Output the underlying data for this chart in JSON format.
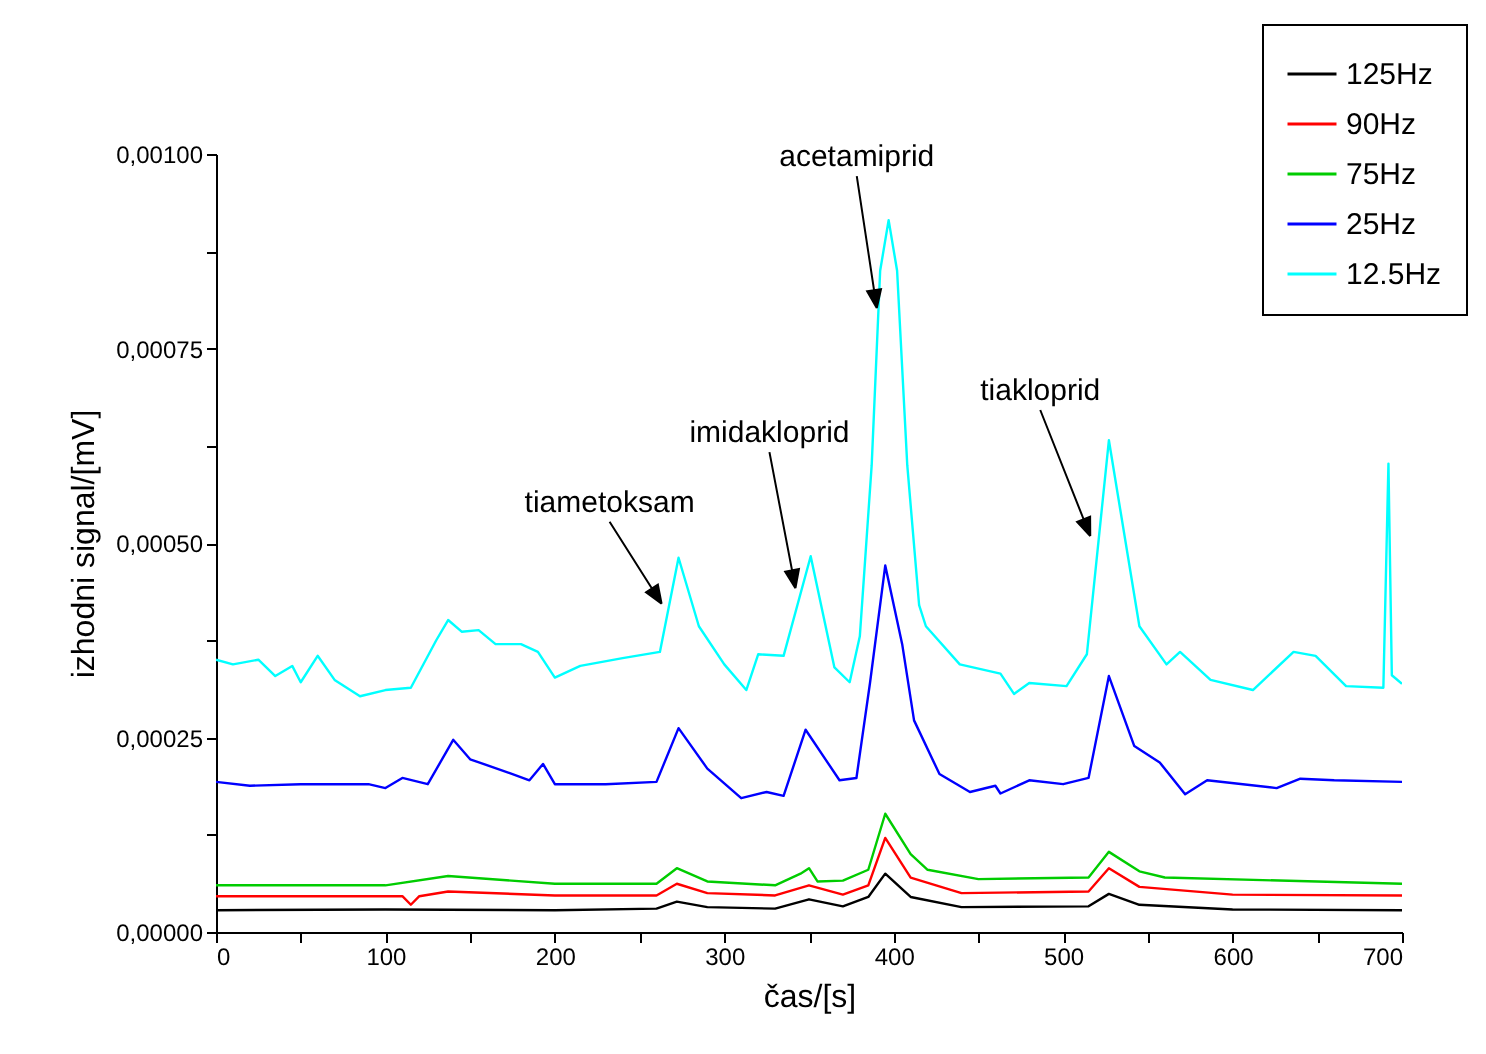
{
  "chart_data": {
    "type": "line",
    "xlabel": "čas/[s]",
    "ylabel": "izhodni signal/[mV]",
    "xlim": [
      0,
      700
    ],
    "ylim": [
      0,
      0.001
    ],
    "xticks": [
      0,
      {
        "value": 50,
        "label": null
      },
      100,
      {
        "value": 150,
        "label": null
      },
      200,
      {
        "value": 250,
        "label": null
      },
      300,
      {
        "value": 350,
        "label": null
      },
      400,
      {
        "value": 450,
        "label": null
      },
      500,
      {
        "value": 550,
        "label": null
      },
      600,
      {
        "value": 650,
        "label": null
      },
      700
    ],
    "yticks": [
      {
        "value": 0,
        "label": "0,00000"
      },
      {
        "value": 0.000125,
        "label": null
      },
      {
        "value": 0.00025,
        "label": "0,00025"
      },
      {
        "value": 0.000375,
        "label": null
      },
      {
        "value": 0.0005,
        "label": "0,00050"
      },
      {
        "value": 0.000625,
        "label": null
      },
      {
        "value": 0.00075,
        "label": "0,00075"
      },
      {
        "value": 0.000875,
        "label": null
      },
      {
        "value": 0.001,
        "label": "0,00100"
      }
    ],
    "grid": false,
    "legend": "top right",
    "line_style": "solid",
    "marker": "none",
    "annotations": [
      {
        "text": "tiametoksam",
        "x": 263,
        "y": 0.000422
      },
      {
        "text": "imidakloprid",
        "x": 342,
        "y": 0.000442
      },
      {
        "text": "acetamiprid",
        "x": 390,
        "y": 0.000802
      },
      {
        "text": "tiakloprid",
        "x": 516,
        "y": 0.000509
      }
    ],
    "series": [
      {
        "name": "125Hz",
        "color": "#000000",
        "x": [
          0,
          100,
          200,
          260,
          272,
          290,
          330,
          350,
          370,
          385,
          395,
          410,
          440,
          515,
          527,
          545,
          600,
          700
        ],
        "values": [
          2.8e-05,
          2.9e-05,
          2.8e-05,
          3e-05,
          3.9e-05,
          3.2e-05,
          3e-05,
          4.2e-05,
          3.3e-05,
          4.5e-05,
          7.5e-05,
          4.5e-05,
          3.2e-05,
          3.3e-05,
          4.9e-05,
          3.5e-05,
          2.9e-05,
          2.8e-05
        ]
      },
      {
        "name": "90Hz",
        "color": "#ff0000",
        "x": [
          0,
          100,
          110,
          115,
          120,
          137,
          200,
          260,
          272,
          290,
          330,
          350,
          370,
          385,
          395,
          410,
          440,
          515,
          527,
          545,
          600,
          700
        ],
        "values": [
          4.6e-05,
          4.6e-05,
          4.6e-05,
          3.5e-05,
          4.6e-05,
          5.2e-05,
          4.7e-05,
          4.7e-05,
          6.2e-05,
          5e-05,
          4.7e-05,
          6e-05,
          4.8e-05,
          6e-05,
          0.000121,
          7e-05,
          5e-05,
          5.2e-05,
          8.2e-05,
          5.8e-05,
          4.8e-05,
          4.7e-05
        ]
      },
      {
        "name": "75Hz",
        "color": "#00cc00",
        "x": [
          0,
          100,
          137,
          200,
          260,
          272,
          290,
          330,
          345,
          350,
          355,
          370,
          385,
          395,
          410,
          420,
          450,
          515,
          527,
          545,
          560,
          700
        ],
        "values": [
          6e-05,
          6e-05,
          7.2e-05,
          6.2e-05,
          6.2e-05,
          8.2e-05,
          6.5e-05,
          6e-05,
          7.5e-05,
          8.2e-05,
          6.5e-05,
          6.6e-05,
          8e-05,
          0.000152,
          0.0001,
          8e-05,
          6.8e-05,
          7e-05,
          0.000103,
          7.8e-05,
          7e-05,
          6.2e-05
        ]
      },
      {
        "name": "25Hz",
        "color": "#0000ff",
        "x": [
          0,
          20,
          50,
          90,
          100,
          110,
          125,
          140,
          150,
          175,
          185,
          193,
          200,
          230,
          260,
          273,
          290,
          310,
          325,
          335,
          348,
          368,
          378,
          386,
          395,
          405,
          412,
          427,
          445,
          460,
          463,
          480,
          500,
          515,
          527,
          542,
          557,
          572,
          585,
          626,
          640,
          660,
          700
        ],
        "values": [
          0.000193,
          0.000188,
          0.00019,
          0.00019,
          0.000185,
          0.000198,
          0.00019,
          0.000247,
          0.000222,
          0.000203,
          0.000195,
          0.000216,
          0.00019,
          0.00019,
          0.000193,
          0.000262,
          0.00021,
          0.000172,
          0.00018,
          0.000175,
          0.00026,
          0.000195,
          0.000198,
          0.00032,
          0.000471,
          0.00037,
          0.000272,
          0.000203,
          0.00018,
          0.000188,
          0.000178,
          0.000195,
          0.00019,
          0.000198,
          0.000329,
          0.000239,
          0.000218,
          0.000177,
          0.000195,
          0.000185,
          0.000197,
          0.000195,
          0.000193
        ]
      },
      {
        "name": "12.5Hz",
        "color": "#00ffff",
        "x": [
          0,
          10,
          25,
          35,
          45,
          50,
          60,
          70,
          85,
          100,
          115,
          130,
          137,
          145,
          155,
          165,
          180,
          190,
          200,
          215,
          240,
          262,
          273,
          285,
          300,
          313,
          320,
          335,
          351,
          365,
          374,
          380,
          387,
          392,
          397,
          402,
          408,
          415,
          419,
          439,
          463,
          471,
          480,
          502,
          514,
          527,
          545,
          561,
          569,
          587,
          612,
          636,
          649,
          667,
          689,
          692,
          694,
          700
        ],
        "values": [
          0.00035,
          0.000344,
          0.00035,
          0.000329,
          0.000342,
          0.000321,
          0.000355,
          0.000324,
          0.000303,
          0.000311,
          0.000314,
          0.000375,
          0.000401,
          0.000386,
          0.000388,
          0.00037,
          0.00037,
          0.00036,
          0.000327,
          0.000342,
          0.000352,
          0.00036,
          0.000481,
          0.000393,
          0.000344,
          0.000311,
          0.000357,
          0.000355,
          0.000483,
          0.00034,
          0.000321,
          0.00038,
          0.0006,
          0.00085,
          0.000915,
          0.00085,
          0.0006,
          0.00042,
          0.000393,
          0.000344,
          0.000332,
          0.000306,
          0.00032,
          0.000316,
          0.000357,
          0.000632,
          0.000393,
          0.000344,
          0.00036,
          0.000324,
          0.000311,
          0.00036,
          0.000355,
          0.000316,
          0.000314,
          0.000602,
          0.00033,
          0.000319
        ]
      }
    ]
  }
}
